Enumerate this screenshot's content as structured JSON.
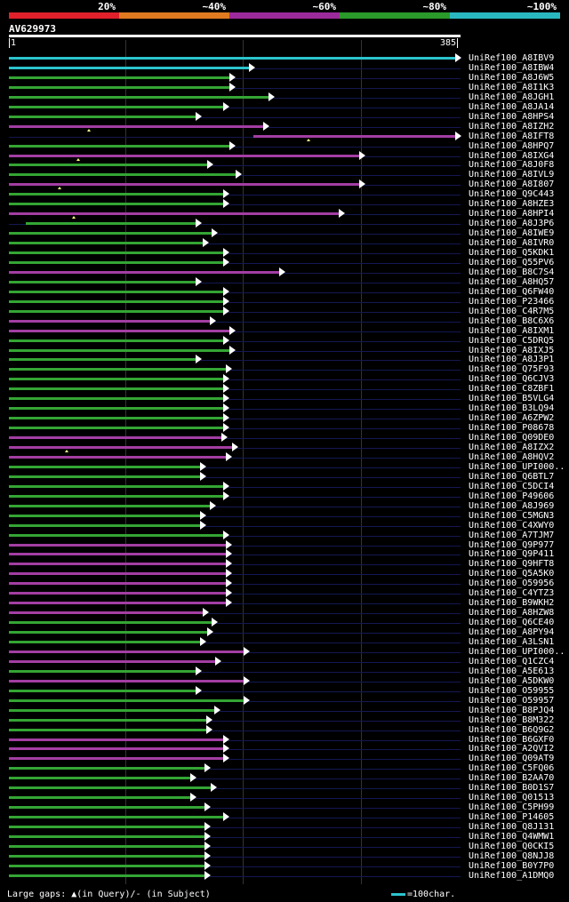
{
  "color_scale": {
    "labels": [
      "20%",
      "~40%",
      "~60%",
      "~80%",
      "~100%"
    ],
    "colors": [
      "#e0202a",
      "#e07a20",
      "#9b2a9b",
      "#2a9a2a",
      "#2ab8c0"
    ]
  },
  "query": {
    "name": "AV629973",
    "start": "1",
    "end": "385",
    "length": 385
  },
  "hit_colors": {
    "cyan": "#2bc4cc",
    "green": "#34a534",
    "purple": "#a33ea3"
  },
  "hits": [
    {
      "label": "UniRef100_A8IBV9",
      "start": 1,
      "end": 385,
      "color": "cyan"
    },
    {
      "label": "UniRef100_A8IBW4",
      "start": 1,
      "end": 210,
      "color": "cyan"
    },
    {
      "label": "UniRef100_A8J6W5",
      "start": 1,
      "end": 193,
      "color": "green"
    },
    {
      "label": "UniRef100_A8I1K3",
      "start": 1,
      "end": 193,
      "color": "green"
    },
    {
      "label": "UniRef100_A8JGH1",
      "start": 1,
      "end": 226,
      "color": "green"
    },
    {
      "label": "UniRef100_A8JA14",
      "start": 1,
      "end": 188,
      "color": "green"
    },
    {
      "label": "UniRef100_A8HPS4",
      "start": 1,
      "end": 164,
      "color": "green"
    },
    {
      "label": "UniRef100_A8IZH2",
      "start": 1,
      "end": 222,
      "color": "purple",
      "gaps": [
        69
      ]
    },
    {
      "label": "UniRef100_A8IFT8",
      "start": 209,
      "end": 385,
      "color": "purple",
      "gaps": [
        256
      ]
    },
    {
      "label": "UniRef100_A8HPQ7",
      "start": 1,
      "end": 193,
      "color": "green"
    },
    {
      "label": "UniRef100_A8IXG4",
      "start": 1,
      "end": 303,
      "color": "purple",
      "gaps": [
        60
      ]
    },
    {
      "label": "UniRef100_A8J0F8",
      "start": 1,
      "end": 174,
      "color": "green"
    },
    {
      "label": "UniRef100_A8IVL9",
      "start": 1,
      "end": 198,
      "color": "green"
    },
    {
      "label": "UniRef100_A8I807",
      "start": 1,
      "end": 303,
      "color": "purple",
      "gaps": [
        44
      ]
    },
    {
      "label": "UniRef100_Q9C443",
      "start": 1,
      "end": 188,
      "color": "green"
    },
    {
      "label": "UniRef100_A8HZE3",
      "start": 1,
      "end": 188,
      "color": "green"
    },
    {
      "label": "UniRef100_A8HPI4",
      "start": 1,
      "end": 286,
      "color": "purple",
      "gaps": [
        56
      ]
    },
    {
      "label": "UniRef100_A8J3P6",
      "start": 15,
      "end": 164,
      "color": "green"
    },
    {
      "label": "UniRef100_A8IWE9",
      "start": 1,
      "end": 178,
      "color": "green"
    },
    {
      "label": "UniRef100_A8IVR0",
      "start": 1,
      "end": 170,
      "color": "green"
    },
    {
      "label": "UniRef100_Q5KDK1",
      "start": 1,
      "end": 188,
      "color": "green"
    },
    {
      "label": "UniRef100_Q55PV6",
      "start": 1,
      "end": 188,
      "color": "green"
    },
    {
      "label": "UniRef100_B8C7S4",
      "start": 1,
      "end": 235,
      "color": "purple"
    },
    {
      "label": "UniRef100_A8HQ57",
      "start": 1,
      "end": 164,
      "color": "green"
    },
    {
      "label": "UniRef100_Q6FW40",
      "start": 1,
      "end": 188,
      "color": "green"
    },
    {
      "label": "UniRef100_P23466",
      "start": 1,
      "end": 188,
      "color": "green"
    },
    {
      "label": "UniRef100_C4R7M5",
      "start": 1,
      "end": 188,
      "color": "green"
    },
    {
      "label": "UniRef100_B8C6X6",
      "start": 1,
      "end": 176,
      "color": "purple"
    },
    {
      "label": "UniRef100_A8IXM1",
      "start": 1,
      "end": 193,
      "color": "purple"
    },
    {
      "label": "UniRef100_C5DRQ5",
      "start": 1,
      "end": 188,
      "color": "green"
    },
    {
      "label": "UniRef100_A8IXJ5",
      "start": 1,
      "end": 193,
      "color": "green"
    },
    {
      "label": "UniRef100_A8J3P1",
      "start": 1,
      "end": 164,
      "color": "green"
    },
    {
      "label": "UniRef100_Q75F93",
      "start": 1,
      "end": 190,
      "color": "green"
    },
    {
      "label": "UniRef100_Q6CJV3",
      "start": 1,
      "end": 188,
      "color": "green"
    },
    {
      "label": "UniRef100_C8ZBF1",
      "start": 1,
      "end": 188,
      "color": "green"
    },
    {
      "label": "UniRef100_B5VLG4",
      "start": 1,
      "end": 188,
      "color": "green"
    },
    {
      "label": "UniRef100_B3LQ94",
      "start": 1,
      "end": 188,
      "color": "green"
    },
    {
      "label": "UniRef100_A6ZPW2",
      "start": 1,
      "end": 188,
      "color": "green"
    },
    {
      "label": "UniRef100_P08678",
      "start": 1,
      "end": 188,
      "color": "green"
    },
    {
      "label": "UniRef100_Q09DE0",
      "start": 1,
      "end": 186,
      "color": "purple"
    },
    {
      "label": "UniRef100_A8IZX2",
      "start": 1,
      "end": 195,
      "color": "purple",
      "gaps": [
        50
      ]
    },
    {
      "label": "UniRef100_A8HQV2",
      "start": 1,
      "end": 190,
      "color": "purple"
    },
    {
      "label": "UniRef100_UPI000..",
      "start": 1,
      "end": 168,
      "color": "green"
    },
    {
      "label": "UniRef100_Q6BTL7",
      "start": 1,
      "end": 168,
      "color": "green"
    },
    {
      "label": "UniRef100_C5DCI4",
      "start": 1,
      "end": 188,
      "color": "green"
    },
    {
      "label": "UniRef100_P49606",
      "start": 1,
      "end": 188,
      "color": "green"
    },
    {
      "label": "UniRef100_A8J969",
      "start": 1,
      "end": 176,
      "color": "green"
    },
    {
      "label": "UniRef100_C5MGN3",
      "start": 1,
      "end": 168,
      "color": "green"
    },
    {
      "label": "UniRef100_C4XWY0",
      "start": 1,
      "end": 168,
      "color": "green"
    },
    {
      "label": "UniRef100_A7TJM7",
      "start": 1,
      "end": 188,
      "color": "green"
    },
    {
      "label": "UniRef100_Q9P977",
      "start": 1,
      "end": 190,
      "color": "purple"
    },
    {
      "label": "UniRef100_Q9P411",
      "start": 1,
      "end": 190,
      "color": "purple"
    },
    {
      "label": "UniRef100_Q9HFT8",
      "start": 1,
      "end": 190,
      "color": "purple"
    },
    {
      "label": "UniRef100_Q5A5K0",
      "start": 1,
      "end": 190,
      "color": "purple"
    },
    {
      "label": "UniRef100_O59956",
      "start": 1,
      "end": 190,
      "color": "purple"
    },
    {
      "label": "UniRef100_C4YTZ3",
      "start": 1,
      "end": 190,
      "color": "purple"
    },
    {
      "label": "UniRef100_B9WKH2",
      "start": 1,
      "end": 190,
      "color": "purple"
    },
    {
      "label": "UniRef100_A8HZW8",
      "start": 1,
      "end": 170,
      "color": "purple"
    },
    {
      "label": "UniRef100_Q6CE40",
      "start": 1,
      "end": 178,
      "color": "green"
    },
    {
      "label": "UniRef100_A8PY94",
      "start": 1,
      "end": 174,
      "color": "green"
    },
    {
      "label": "UniRef100_A3LSN1",
      "start": 1,
      "end": 168,
      "color": "green"
    },
    {
      "label": "UniRef100_UPI000..",
      "start": 1,
      "end": 205,
      "color": "purple"
    },
    {
      "label": "UniRef100_Q1CZC4",
      "start": 1,
      "end": 181,
      "color": "purple"
    },
    {
      "label": "UniRef100_A5E613",
      "start": 1,
      "end": 164,
      "color": "green"
    },
    {
      "label": "UniRef100_A5DKW0",
      "start": 1,
      "end": 205,
      "color": "purple"
    },
    {
      "label": "UniRef100_O59955",
      "start": 1,
      "end": 164,
      "color": "green"
    },
    {
      "label": "UniRef100_O59957",
      "start": 1,
      "end": 205,
      "color": "green"
    },
    {
      "label": "UniRef100_B8PJQ4",
      "start": 1,
      "end": 180,
      "color": "green"
    },
    {
      "label": "UniRef100_B8M322",
      "start": 1,
      "end": 173,
      "color": "green"
    },
    {
      "label": "UniRef100_B6Q9G2",
      "start": 1,
      "end": 173,
      "color": "green"
    },
    {
      "label": "UniRef100_B6GXF0",
      "start": 1,
      "end": 188,
      "color": "purple"
    },
    {
      "label": "UniRef100_A2QVI2",
      "start": 1,
      "end": 188,
      "color": "purple"
    },
    {
      "label": "UniRef100_Q09AT9",
      "start": 1,
      "end": 188,
      "color": "purple"
    },
    {
      "label": "UniRef100_C5FQ06",
      "start": 1,
      "end": 172,
      "color": "green"
    },
    {
      "label": "UniRef100_B2AA70",
      "start": 1,
      "end": 160,
      "color": "green"
    },
    {
      "label": "UniRef100_B0D1S7",
      "start": 1,
      "end": 177,
      "color": "green"
    },
    {
      "label": "UniRef100_Q01513",
      "start": 1,
      "end": 160,
      "color": "green"
    },
    {
      "label": "UniRef100_C5PH99",
      "start": 1,
      "end": 172,
      "color": "green"
    },
    {
      "label": "UniRef100_P14605",
      "start": 1,
      "end": 188,
      "color": "green"
    },
    {
      "label": "UniRef100_Q8J131",
      "start": 1,
      "end": 172,
      "color": "green"
    },
    {
      "label": "UniRef100_Q4WMW1",
      "start": 1,
      "end": 172,
      "color": "green"
    },
    {
      "label": "UniRef100_Q0CKI5",
      "start": 1,
      "end": 172,
      "color": "green"
    },
    {
      "label": "UniRef100_Q8NJJ8",
      "start": 1,
      "end": 172,
      "color": "green"
    },
    {
      "label": "UniRef100_B0Y7P0",
      "start": 1,
      "end": 172,
      "color": "green"
    },
    {
      "label": "UniRef100_A1DMQ0",
      "start": 1,
      "end": 172,
      "color": "green"
    }
  ],
  "footer": {
    "text": "Large gaps: ▲(in Query)/- (in Subject)",
    "legend": "=100char."
  }
}
